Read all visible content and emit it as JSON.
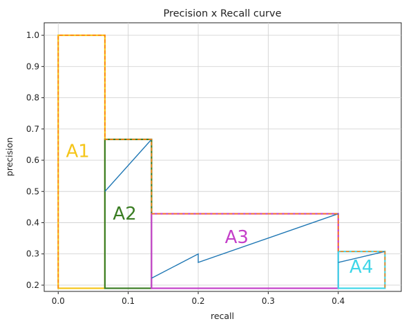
{
  "chart_data": {
    "type": "line",
    "title": "Precision x Recall curve",
    "xlabel": "recall",
    "ylabel": "precision",
    "xlim": [
      -0.02,
      0.49
    ],
    "ylim": [
      0.18,
      1.04
    ],
    "grid": true,
    "x_ticks": [
      "0.0",
      "0.1",
      "0.2",
      "0.3",
      "0.4"
    ],
    "y_ticks": [
      "0.2",
      "0.3",
      "0.4",
      "0.5",
      "0.6",
      "0.7",
      "0.8",
      "0.9",
      "1.0"
    ],
    "series": [
      {
        "color": "#1f77b4",
        "x": [
          0.0667,
          0.1333,
          null,
          0.1333,
          0.2,
          0.2,
          0.4,
          null,
          0.4,
          0.4667
        ],
        "y": [
          0.5,
          0.6667,
          null,
          0.2222,
          0.3,
          0.2727,
          0.4286,
          null,
          0.2727,
          0.3077
        ]
      },
      {
        "color": "#ff7f0e",
        "style": "dashed",
        "x": [
          0.0,
          0.0,
          0.0667,
          0.0667,
          0.1333,
          0.1333,
          0.4,
          0.4,
          0.4667,
          0.4667
        ],
        "y": [
          0.19,
          1.0,
          1.0,
          0.6667,
          0.6667,
          0.4286,
          0.4286,
          0.3077,
          0.3077,
          0.19
        ]
      }
    ],
    "regions": [
      {
        "label": "A1",
        "color": "#f5c518",
        "x0": 0.0,
        "x1": 0.0667,
        "top": 1.0,
        "label_x": 0.028,
        "label_y": 0.61
      },
      {
        "label": "A2",
        "color": "#3a7d23",
        "x0": 0.0667,
        "x1": 0.1333,
        "top": 0.6667,
        "label_x": 0.095,
        "label_y": 0.41
      },
      {
        "label": "A3",
        "color": "#c43fc9",
        "x0": 0.1333,
        "x1": 0.4,
        "top": 0.4286,
        "label_x": 0.255,
        "label_y": 0.335
      },
      {
        "label": "A4",
        "color": "#3fd6e8",
        "x0": 0.4,
        "x1": 0.4667,
        "top": 0.3077,
        "label_x": 0.433,
        "label_y": 0.24
      }
    ],
    "region_bottom": 0.19
  }
}
